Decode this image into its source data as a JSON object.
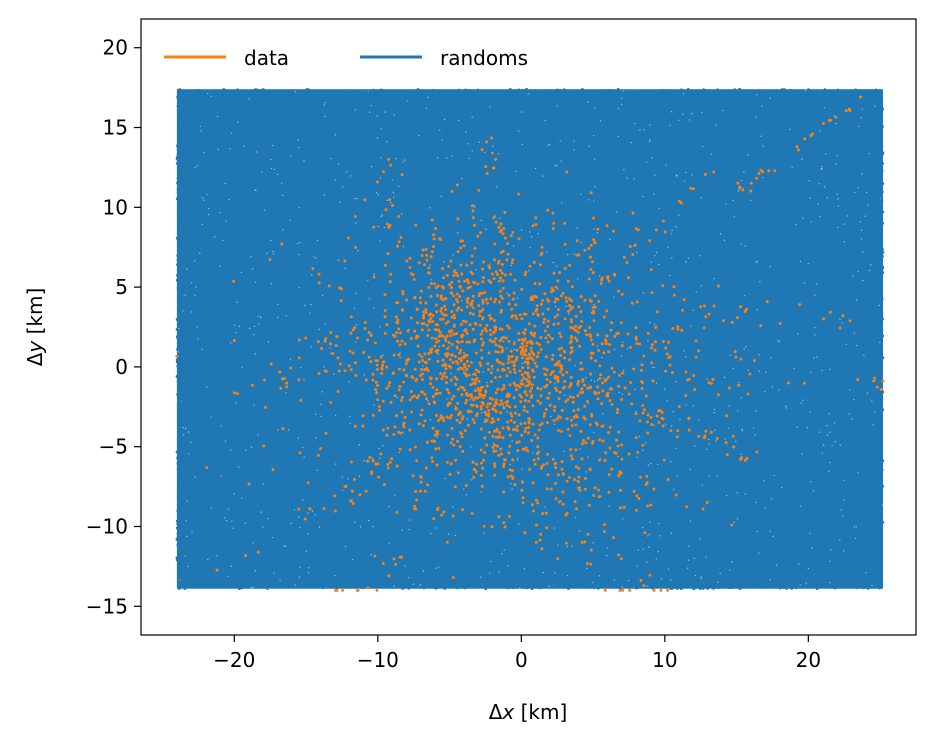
{
  "chart_data": {
    "type": "scatter",
    "xlabel_symbol": "Δ",
    "xlabel_var": "x",
    "xlabel_unit": " [km]",
    "ylabel_symbol": "Δ",
    "ylabel_var": "y",
    "ylabel_unit": " [km]",
    "xlim": [
      -26.5,
      27.5
    ],
    "ylim": [
      -16.8,
      21.8
    ],
    "xticks": [
      -20,
      -10,
      0,
      10,
      20
    ],
    "xtick_labels": [
      "−20",
      "−10",
      "0",
      "10",
      "20"
    ],
    "yticks": [
      -15,
      -10,
      -5,
      0,
      5,
      10,
      15,
      20
    ],
    "ytick_labels": [
      "−15",
      "−10",
      "−5",
      "0",
      "5",
      "10",
      "15",
      "20"
    ],
    "grid": false,
    "legend_position": "top-left",
    "series": [
      {
        "name": "data",
        "color": "#ff7f0e",
        "extent": {
          "x": [
            -24,
            25.2
          ],
          "y": [
            -14,
            17.4
          ]
        },
        "center": {
          "x": -2,
          "y": 0
        },
        "spread": {
          "x": 10,
          "y": 6
        },
        "count": 1800
      },
      {
        "name": "randoms",
        "color": "#1f77b4",
        "extent": {
          "x": [
            -24,
            25.2
          ],
          "y": [
            -13.9,
            17.4
          ]
        },
        "count": 22000
      }
    ]
  }
}
